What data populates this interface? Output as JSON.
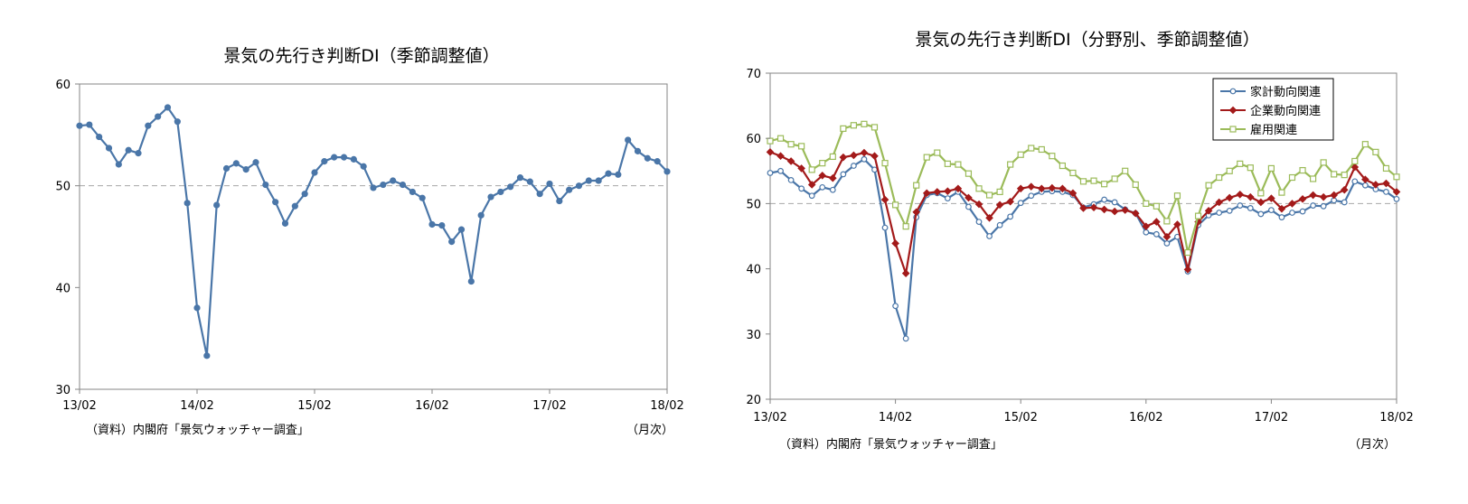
{
  "source_note": "（資料）内閣府「景気ウォッチャー調査」",
  "unit_note": "（月次）",
  "chart_data": [
    {
      "type": "line",
      "title": "景気の先行き判断DI（季節調整値）",
      "xlabel": "",
      "ylabel": "",
      "ylim": [
        30,
        60
      ],
      "yticks": [
        "30",
        "40",
        "50",
        "60"
      ],
      "xticks": [
        "13/02",
        "14/02",
        "15/02",
        "16/02",
        "17/02",
        "18/02"
      ],
      "reference_line": 50,
      "x_start": "2013/02",
      "series": [
        {
          "color": "#4a76a8",
          "values": [
            55.9,
            56.0,
            54.8,
            53.7,
            52.1,
            53.5,
            53.2,
            55.9,
            56.8,
            57.7,
            56.3,
            48.3,
            38.0,
            33.3,
            48.1,
            51.7,
            52.2,
            51.6,
            52.3,
            50.1,
            48.4,
            46.3,
            48.0,
            49.2,
            51.3,
            52.4,
            52.8,
            52.8,
            52.6,
            51.9,
            49.8,
            50.1,
            50.5,
            50.1,
            49.4,
            48.8,
            46.2,
            46.1,
            44.5,
            45.7,
            40.6,
            47.1,
            48.9,
            49.4,
            49.9,
            50.8,
            50.4,
            49.2,
            50.2,
            48.5,
            49.6,
            50.0,
            50.5,
            50.5,
            51.2,
            51.1,
            54.5,
            53.4,
            52.7,
            52.4,
            51.4
          ]
        }
      ]
    },
    {
      "type": "line",
      "title": "景気の先行き判断DI（分野別、季節調整値）",
      "xlabel": "",
      "ylabel": "",
      "ylim": [
        20,
        70
      ],
      "yticks": [
        "20",
        "30",
        "40",
        "50",
        "60",
        "70"
      ],
      "xticks": [
        "13/02",
        "14/02",
        "15/02",
        "16/02",
        "17/02",
        "18/02"
      ],
      "reference_line": 50,
      "legend": "top-right",
      "series": [
        {
          "name": "家計動向関連",
          "color": "#4a76a8",
          "marker": "circle",
          "values": [
            54.7,
            55.0,
            53.6,
            52.3,
            51.2,
            52.5,
            52.1,
            54.5,
            55.8,
            56.8,
            55.2,
            46.3,
            34.3,
            29.3,
            47.9,
            51.3,
            51.6,
            50.8,
            51.8,
            49.5,
            47.2,
            45.0,
            46.7,
            48.0,
            50.1,
            51.2,
            51.8,
            51.9,
            51.8,
            51.3,
            49.4,
            49.9,
            50.6,
            50.2,
            49.1,
            48.5,
            45.6,
            45.3,
            43.9,
            44.9,
            39.6,
            46.7,
            48.2,
            48.6,
            48.9,
            49.7,
            49.3,
            48.4,
            49.0,
            47.9,
            48.6,
            48.8,
            49.7,
            49.6,
            50.5,
            50.2,
            53.4,
            52.8,
            52.2,
            51.8,
            50.7
          ]
        },
        {
          "name": "企業動向関連",
          "color": "#a31a1a",
          "marker": "diamond",
          "values": [
            57.9,
            57.3,
            56.5,
            55.4,
            52.9,
            54.3,
            53.9,
            57.1,
            57.4,
            57.8,
            57.3,
            50.6,
            43.9,
            39.3,
            48.7,
            51.6,
            51.8,
            51.9,
            52.3,
            50.9,
            49.9,
            47.8,
            49.8,
            50.3,
            52.3,
            52.6,
            52.3,
            52.4,
            52.3,
            51.6,
            49.3,
            49.4,
            49.1,
            48.8,
            49.0,
            48.5,
            46.5,
            47.2,
            44.9,
            46.8,
            39.9,
            47.2,
            48.9,
            50.2,
            50.9,
            51.4,
            51.0,
            50.2,
            50.8,
            49.2,
            50.0,
            50.7,
            51.3,
            51.0,
            51.3,
            52.1,
            55.6,
            53.7,
            52.9,
            53.1,
            51.8
          ]
        },
        {
          "name": "雇用関連",
          "color": "#9bbb59",
          "marker": "square",
          "values": [
            59.6,
            60.0,
            59.1,
            58.8,
            55.2,
            56.2,
            57.2,
            61.5,
            62.0,
            62.2,
            61.7,
            56.2,
            49.8,
            46.5,
            52.8,
            57.1,
            57.8,
            56.1,
            56.0,
            54.6,
            52.3,
            51.3,
            51.8,
            56.0,
            57.5,
            58.5,
            58.3,
            57.3,
            55.8,
            54.7,
            53.4,
            53.5,
            53.0,
            53.8,
            55.0,
            52.9,
            50.0,
            49.6,
            47.3,
            51.2,
            42.5,
            48.1,
            52.8,
            54.0,
            55.0,
            56.1,
            55.5,
            51.6,
            55.4,
            51.7,
            54.0,
            55.1,
            53.8,
            56.3,
            54.5,
            54.4,
            56.5,
            59.1,
            57.9,
            55.4,
            54.1
          ]
        }
      ]
    }
  ]
}
